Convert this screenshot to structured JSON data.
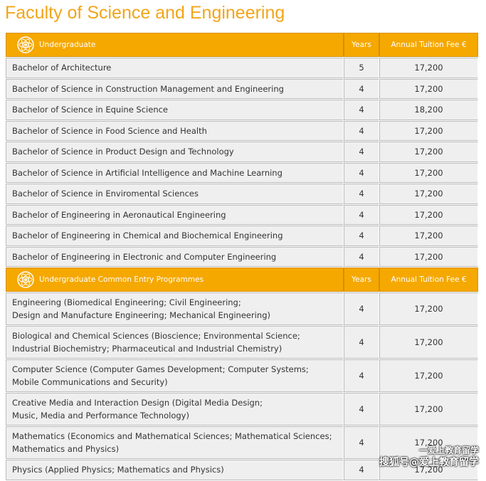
{
  "title": "Faculty of Science and Engineering",
  "sections": [
    {
      "header": [
        "Undergraduate",
        "Years",
        "Annual Tuition Fee €"
      ],
      "rows": [
        [
          [
            "Bachelor of Architecture"
          ],
          "5",
          "17,200"
        ],
        [
          [
            "Bachelor of Science in Construction Management and Engineering"
          ],
          "4",
          "17,200"
        ],
        [
          [
            "Bachelor of Science in Equine Science"
          ],
          "4",
          "18,200"
        ],
        [
          [
            "Bachelor of Science in Food Science and Health"
          ],
          "4",
          "17,200"
        ],
        [
          [
            "Bachelor of Science in Product Design and Technology"
          ],
          "4",
          "17,200"
        ],
        [
          [
            "Bachelor of Science in Artificial Intelligence and Machine Learning"
          ],
          "4",
          "17,200"
        ],
        [
          [
            "Bachelor of Science in Enviromental Sciences"
          ],
          "4",
          "17,200"
        ],
        [
          [
            "Bachelor of Engineering in Aeronautical Engineering"
          ],
          "4",
          "17,200"
        ],
        [
          [
            "Bachelor of Engineering in Chemical and Biochemical Engineering"
          ],
          "4",
          "17,200"
        ],
        [
          [
            "Bachelor of Engineering in Electronic and Computer Engineering"
          ],
          "4",
          "17,200"
        ]
      ]
    },
    {
      "header": [
        "Undergraduate Common Entry Programmes",
        "Years",
        "Annual Tuition Fee €"
      ],
      "rows": [
        [
          [
            "Engineering (Biomedical Engineering; Civil Engineering;",
            "Design and Manufacture Engineering; Mechanical Engineering)"
          ],
          "4",
          "17,200"
        ],
        [
          [
            "Biological and Chemical Sciences (Bioscience; Environmental Science;",
            "Industrial Biochemistry; Pharmaceutical and Industrial Chemistry)"
          ],
          "4",
          "17,200"
        ],
        [
          [
            "Computer Science (Computer Games Development; Computer Systems;",
            "Mobile Communications and Security)"
          ],
          "4",
          "17,200"
        ],
        [
          [
            "Creative Media and Interaction Design (Digital Media Design;",
            "Music, Media and Performance Technology)"
          ],
          "4",
          "17,200"
        ],
        [
          [
            "Mathematics (Economics and Mathematical Sciences; Mathematical Sciences;",
            "Mathematics and Physics)"
          ],
          "4",
          "17,200"
        ],
        [
          [
            "Physics (Applied Physics; Mathematics and Physics)"
          ],
          "4",
          "17,200"
        ]
      ]
    }
  ],
  "watermark": [
    "一爱上教育留学",
    "搜狐号@爱上教育留学"
  ]
}
